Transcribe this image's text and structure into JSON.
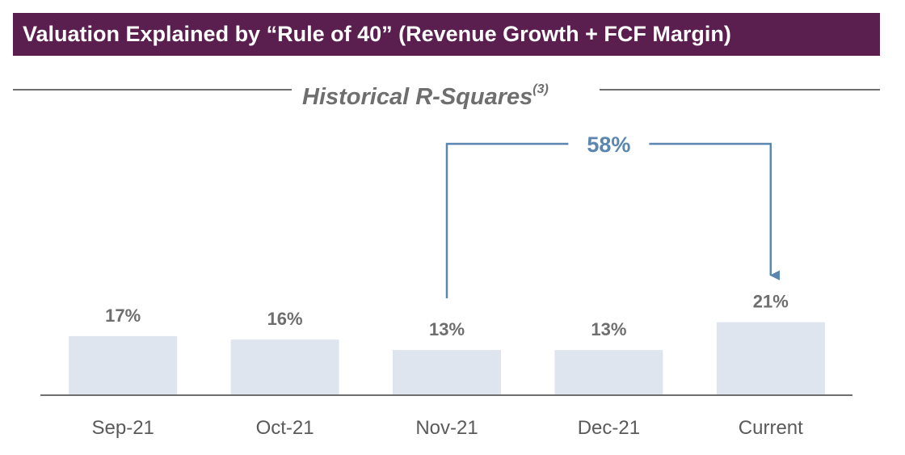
{
  "header": {
    "title": "Valuation Explained by “Rule of 40” (Revenue Growth + FCF Margin)"
  },
  "chart_data": {
    "type": "bar",
    "title": "Historical R-Squares",
    "title_footnote": "(3)",
    "categories": [
      "Sep-21",
      "Oct-21",
      "Nov-21",
      "Dec-21",
      "Current"
    ],
    "values": [
      17,
      16,
      13,
      13,
      21
    ],
    "value_labels": [
      "17%",
      "16%",
      "13%",
      "13%",
      "21%"
    ],
    "unit": "%",
    "ylim": [
      0,
      25
    ],
    "grid": false,
    "legend": "none",
    "annotation": {
      "label": "58%",
      "from_category": "Nov-21",
      "to_category": "Current"
    },
    "colors": {
      "bar": "#dee5ef",
      "annotation": "#5b86b0",
      "banner": "#5a1f4f",
      "text": "#6e6e6e"
    }
  }
}
